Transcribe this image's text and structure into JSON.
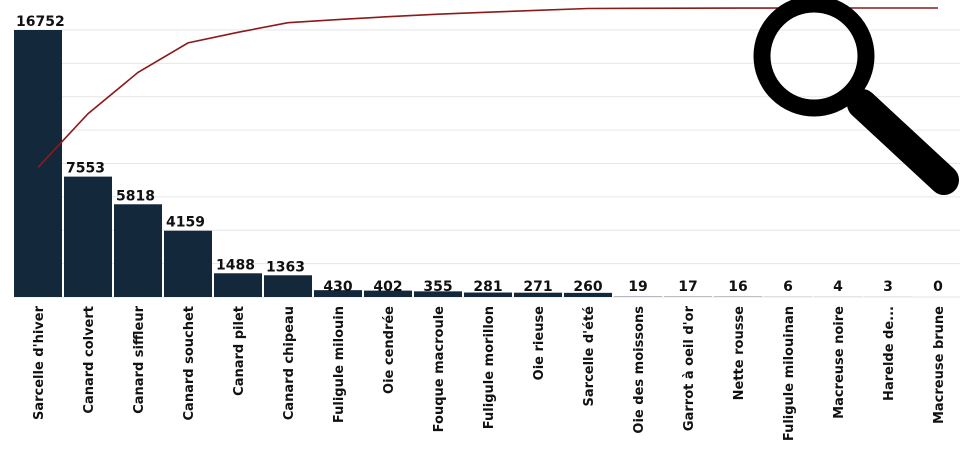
{
  "chart_data": {
    "type": "bar",
    "categories": [
      "Sarcelle d'hiver",
      "Canard colvert",
      "Canard siffleur",
      "Canard souchet",
      "Canard pilet",
      "Canard chipeau",
      "Fuligule milouin",
      "Oie cendrée",
      "Fouque macroule",
      "Fuligule morillon",
      "Oie rieuse",
      "Sarcelle d'été",
      "Oie des moissons",
      "Garrot à oeil d'or",
      "Nette rousse",
      "Fuligule milouinan",
      "Macreuse noire",
      "Harelde de...",
      "Macreuse brune"
    ],
    "values": [
      16752,
      7553,
      5818,
      4159,
      1488,
      1363,
      430,
      402,
      355,
      281,
      271,
      260,
      19,
      17,
      16,
      6,
      4,
      3,
      0
    ],
    "cumulative_line": true,
    "line_color": "#8b1a1a",
    "bar_color": "#14283c",
    "grid": true,
    "ylim": [
      0,
      17000
    ],
    "icon": "magnifier-icon"
  }
}
